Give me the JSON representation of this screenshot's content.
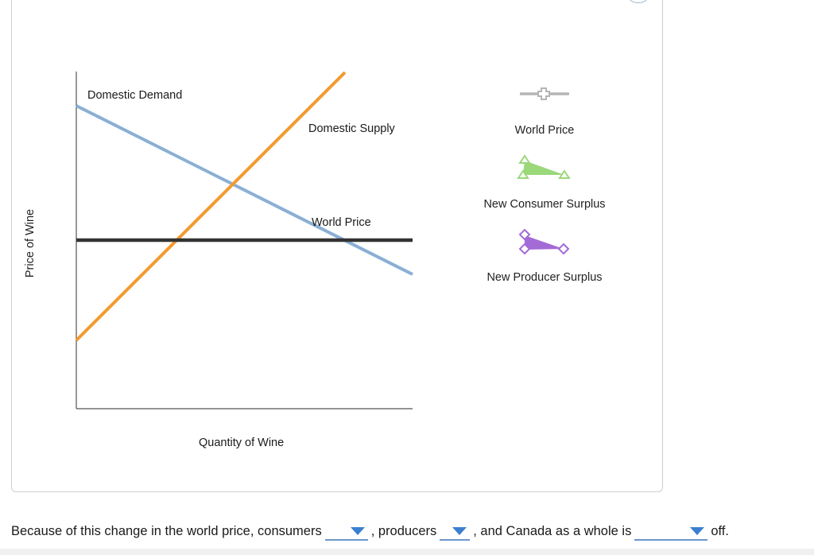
{
  "graph": {
    "y_axis_label": "Price of Wine",
    "x_axis_label": "Quantity of Wine",
    "curves": {
      "domestic_demand": "Domestic Demand",
      "domestic_supply": "Domestic Supply",
      "world_price": "World Price"
    },
    "colors": {
      "demand": "#8aafd4",
      "supply": "#f39a2e",
      "world_price": "#333333",
      "axis": "#555555",
      "consumer_surplus": "#9ad87a",
      "producer_surplus": "#a36bd6",
      "world_price_tool": "#b5b5b5"
    }
  },
  "palette": {
    "tools": [
      {
        "label": "World Price",
        "icon": "crosshair-line-icon"
      },
      {
        "label": "New Consumer Surplus",
        "icon": "green-triangle-icon"
      },
      {
        "label": "New Producer Surplus",
        "icon": "purple-triangle-icon"
      }
    ]
  },
  "question": {
    "part1": "Because of this change in the world price, consumers",
    "part2": ", producers",
    "part3": ", and Canada as a whole is",
    "part4": "off.",
    "dropdowns": [
      {
        "name": "consumers-dropdown",
        "selected": ""
      },
      {
        "name": "producers-dropdown",
        "selected": ""
      },
      {
        "name": "canada-dropdown",
        "selected": ""
      }
    ]
  }
}
